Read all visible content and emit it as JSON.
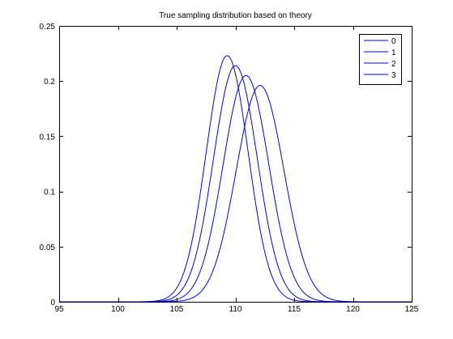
{
  "chart_data": {
    "type": "line",
    "title": "True sampling distribution based on theory",
    "xlabel": "",
    "ylabel": "",
    "xlim": [
      95,
      125
    ],
    "ylim": [
      0,
      0.25
    ],
    "grid": false,
    "legend_position": "top-right",
    "line_color": "#0000ff",
    "x_ticks": [
      95,
      100,
      105,
      110,
      115,
      120,
      125
    ],
    "x_tick_labels": [
      "95",
      "100",
      "105",
      "110",
      "115",
      "120",
      "125"
    ],
    "y_ticks": [
      0,
      0.05,
      0.1,
      0.15,
      0.2,
      0.25
    ],
    "y_tick_labels": [
      "0",
      "0.05",
      "0.1",
      "0.15",
      "0.2",
      "0.25"
    ],
    "series": [
      {
        "name": "0",
        "curve": "normal",
        "mean": 109.3,
        "peak": 0.223
      },
      {
        "name": "1",
        "curve": "normal",
        "mean": 110.0,
        "peak": 0.214
      },
      {
        "name": "2",
        "curve": "normal",
        "mean": 110.9,
        "peak": 0.205
      },
      {
        "name": "3",
        "curve": "normal",
        "mean": 112.1,
        "peak": 0.196
      }
    ]
  }
}
